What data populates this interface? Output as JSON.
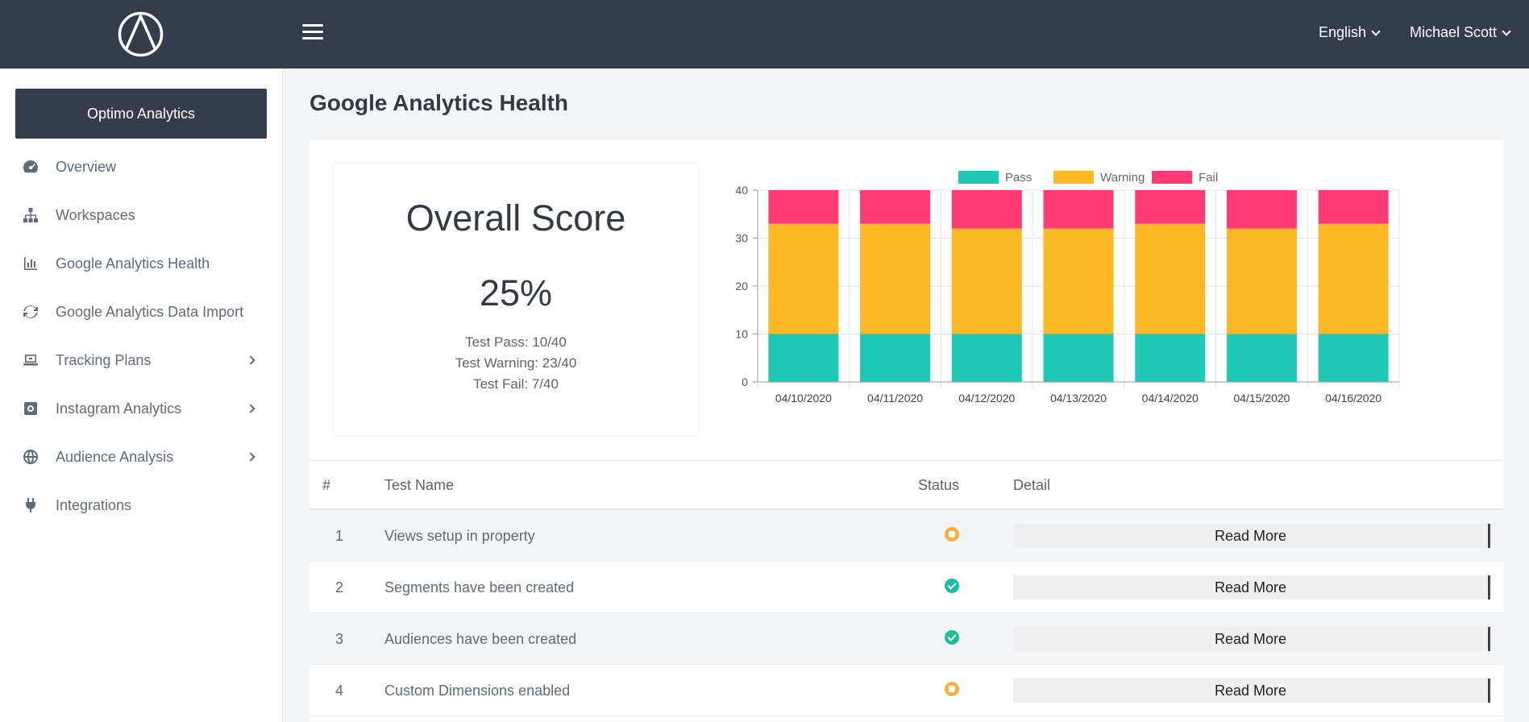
{
  "header": {
    "language": "English",
    "user": "Michael Scott"
  },
  "sidebar": {
    "org_button": "Optimo Analytics",
    "items": [
      {
        "label": "Overview",
        "icon": "dashboard-icon",
        "has_arrow": false
      },
      {
        "label": "Workspaces",
        "icon": "sitemap-icon",
        "has_arrow": false
      },
      {
        "label": "Google Analytics Health",
        "icon": "bar-chart-icon",
        "has_arrow": false
      },
      {
        "label": "Google Analytics Data Import",
        "icon": "sync-icon",
        "has_arrow": false
      },
      {
        "label": "Tracking Plans",
        "icon": "laptop-icon",
        "has_arrow": true
      },
      {
        "label": "Instagram Analytics",
        "icon": "instagram-icon",
        "has_arrow": true
      },
      {
        "label": "Audience Analysis",
        "icon": "globe-icon",
        "has_arrow": true
      },
      {
        "label": "Integrations",
        "icon": "plug-icon",
        "has_arrow": false
      }
    ]
  },
  "main": {
    "title": "Google Analytics Health",
    "score": {
      "title": "Overall Score",
      "value": "25%",
      "pass": "Test Pass: 10/40",
      "warning": "Test Warning: 23/40",
      "fail": "Test Fail: 7/40"
    },
    "table": {
      "headers": [
        "#",
        "Test Name",
        "Status",
        "Detail"
      ],
      "rows": [
        {
          "num": "1",
          "name": "Views setup in property",
          "status": "warning",
          "detail": "Read More"
        },
        {
          "num": "2",
          "name": "Segments have been created",
          "status": "pass",
          "detail": "Read More"
        },
        {
          "num": "3",
          "name": "Audiences have been created",
          "status": "pass",
          "detail": "Read More"
        },
        {
          "num": "4",
          "name": "Custom Dimensions enabled",
          "status": "warning",
          "detail": "Read More"
        }
      ]
    }
  },
  "colors": {
    "pass": "#1ec8b4",
    "warning": "#fdb825",
    "fail": "#fe3a77"
  },
  "chart_data": {
    "type": "bar",
    "stacked": true,
    "categories": [
      "04/10/2020",
      "04/11/2020",
      "04/12/2020",
      "04/13/2020",
      "04/14/2020",
      "04/15/2020",
      "04/16/2020"
    ],
    "series": [
      {
        "name": "Pass",
        "values": [
          10,
          10,
          10,
          10,
          10,
          10,
          10
        ]
      },
      {
        "name": "Warning",
        "values": [
          23,
          23,
          22,
          22,
          23,
          22,
          23
        ]
      },
      {
        "name": "Fail",
        "values": [
          7,
          7,
          8,
          8,
          7,
          8,
          7
        ]
      }
    ],
    "ylim": [
      0,
      40
    ],
    "yticks": [
      0,
      10,
      20,
      30,
      40
    ],
    "legend": "top",
    "grid": true
  }
}
